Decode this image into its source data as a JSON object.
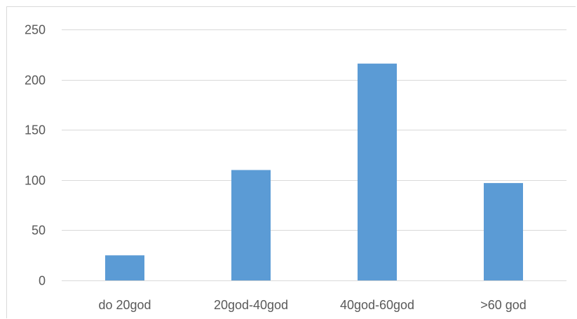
{
  "chart_data": {
    "type": "bar",
    "categories": [
      "do 20god",
      "20god-40god",
      "40god-60god",
      ">60 god"
    ],
    "values": [
      25,
      110,
      216,
      97
    ],
    "title": "",
    "xlabel": "",
    "ylabel": "",
    "ylim": [
      0,
      250
    ],
    "yticks": [
      0,
      50,
      100,
      150,
      200,
      250
    ],
    "grid": true,
    "legend": "none",
    "colors": {
      "bar": "#5b9bd5",
      "grid": "#d9d9d9",
      "text": "#595959"
    }
  }
}
